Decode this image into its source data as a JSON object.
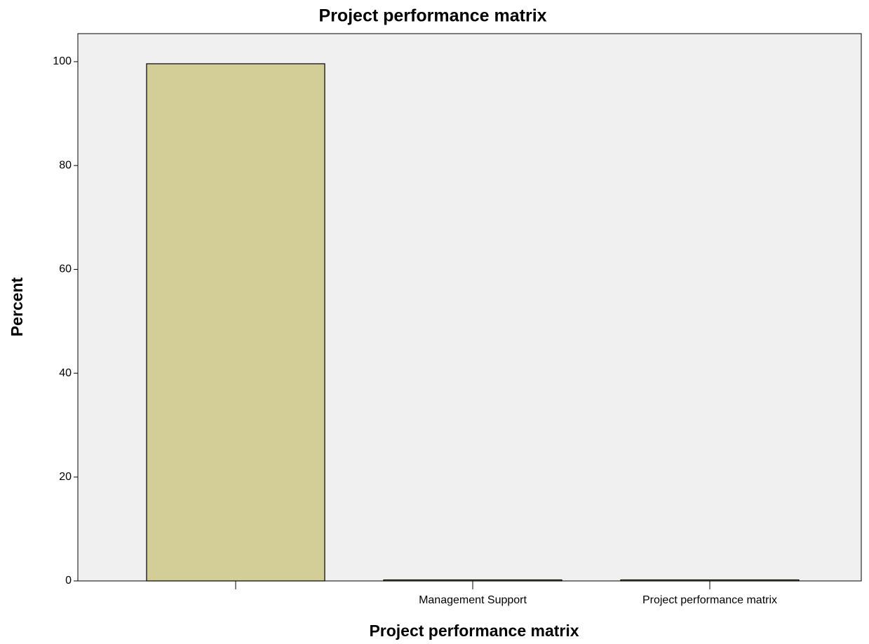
{
  "chart_data": {
    "type": "bar",
    "title": "Project performance matrix",
    "x_label": "Project performance matrix",
    "y_label": "Percent",
    "categories": [
      null,
      "Management Support",
      "Project performance matrix"
    ],
    "values": [
      99.6,
      0.2,
      0.2
    ],
    "color": "#d3ce97",
    "ylim": [
      0,
      105.4
    ],
    "yticks": [
      0,
      20,
      40,
      60,
      80,
      100
    ],
    "grid": false
  }
}
